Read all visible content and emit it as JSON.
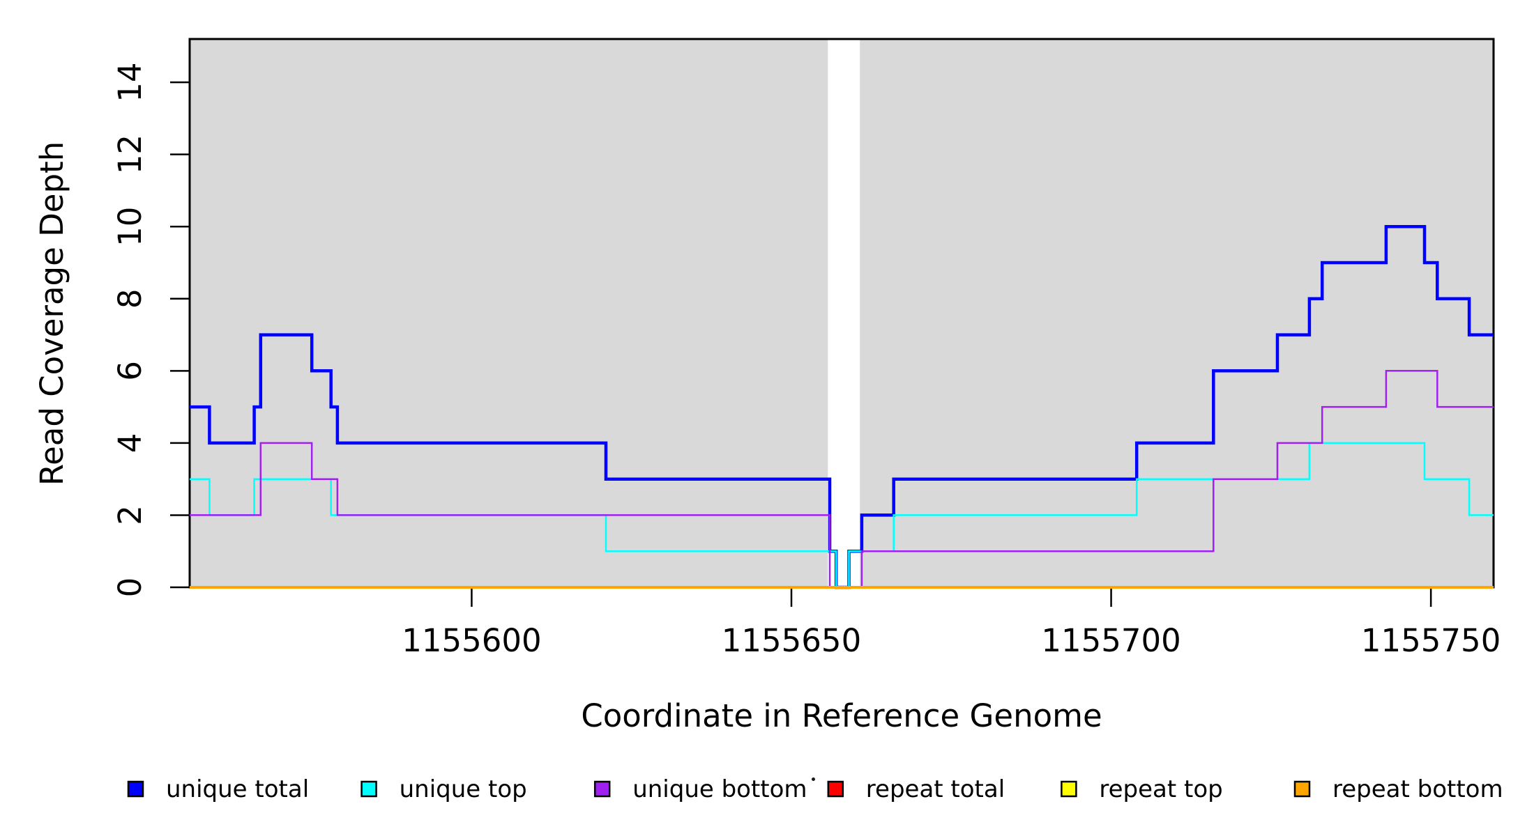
{
  "chart_data": {
    "type": "line",
    "subtype": "step",
    "title": "",
    "xlabel": "Coordinate in Reference Genome",
    "ylabel": "Read Coverage Depth",
    "xlim": [
      1155555.9,
      1155759.8
    ],
    "ylim": [
      0,
      15.2
    ],
    "x_ticks": [
      1155600,
      1155650,
      1155700,
      1155750
    ],
    "y_ticks": [
      0,
      2,
      4,
      6,
      8,
      10,
      12,
      14
    ],
    "grid": false,
    "plot_bg_color": "#d9d9d9",
    "border_color": "#000000",
    "gap_band": {
      "from": 1155655.7,
      "to": 1155660.7,
      "color": "#ffffff"
    },
    "legend_position": "bottom",
    "series": [
      {
        "name": "unique total",
        "color": "#0000ff",
        "line_width": 4.5,
        "steps": [
          [
            1155556,
            5
          ],
          [
            1155559,
            4
          ],
          [
            1155566,
            5
          ],
          [
            1155567,
            7
          ],
          [
            1155575,
            6
          ],
          [
            1155578,
            5
          ],
          [
            1155579,
            4
          ],
          [
            1155621,
            3
          ],
          [
            1155656,
            1
          ],
          [
            1155657,
            0
          ],
          [
            1155659,
            1
          ],
          [
            1155661,
            2
          ],
          [
            1155666,
            3
          ],
          [
            1155704,
            4
          ],
          [
            1155716,
            6
          ],
          [
            1155726,
            7
          ],
          [
            1155731,
            8
          ],
          [
            1155733,
            9
          ],
          [
            1155743,
            10
          ],
          [
            1155749,
            9
          ],
          [
            1155751,
            8
          ],
          [
            1155756,
            7
          ]
        ]
      },
      {
        "name": "unique top",
        "color": "#00ffff",
        "line_width": 2.5,
        "steps": [
          [
            1155556,
            3
          ],
          [
            1155559,
            2
          ],
          [
            1155566,
            3
          ],
          [
            1155578,
            2
          ],
          [
            1155621,
            1
          ],
          [
            1155657,
            0
          ],
          [
            1155659,
            1
          ],
          [
            1155666,
            2
          ],
          [
            1155704,
            3
          ],
          [
            1155731,
            4
          ],
          [
            1155749,
            3
          ],
          [
            1155756,
            2
          ]
        ]
      },
      {
        "name": "unique bottom",
        "color": "#a020f0",
        "line_width": 2.5,
        "steps": [
          [
            1155556,
            2
          ],
          [
            1155567,
            4
          ],
          [
            1155575,
            3
          ],
          [
            1155579,
            2
          ],
          [
            1155656,
            0
          ],
          [
            1155661,
            1
          ],
          [
            1155716,
            3
          ],
          [
            1155726,
            4
          ],
          [
            1155733,
            5
          ],
          [
            1155743,
            6
          ],
          [
            1155751,
            5
          ]
        ]
      },
      {
        "name": "repeat total",
        "color": "#ff0000",
        "line_width": 2.5,
        "steps": [
          [
            1155556,
            0
          ]
        ]
      },
      {
        "name": "repeat top",
        "color": "#ffff00",
        "line_width": 2.5,
        "steps": [
          [
            1155556,
            0
          ]
        ]
      },
      {
        "name": "repeat bottom",
        "color": "#ffa500",
        "line_width": 4,
        "steps": [
          [
            1155556,
            0
          ]
        ]
      }
    ],
    "legend": [
      {
        "label": "unique total",
        "color": "#0000ff"
      },
      {
        "label": "unique top",
        "color": "#00ffff"
      },
      {
        "label": "unique bottom",
        "color": "#a020f0"
      },
      {
        "label": "repeat total",
        "color": "#ff0000"
      },
      {
        "label": "repeat top",
        "color": "#ffff00"
      },
      {
        "label": "repeat bottom",
        "color": "#ffa500"
      }
    ]
  }
}
